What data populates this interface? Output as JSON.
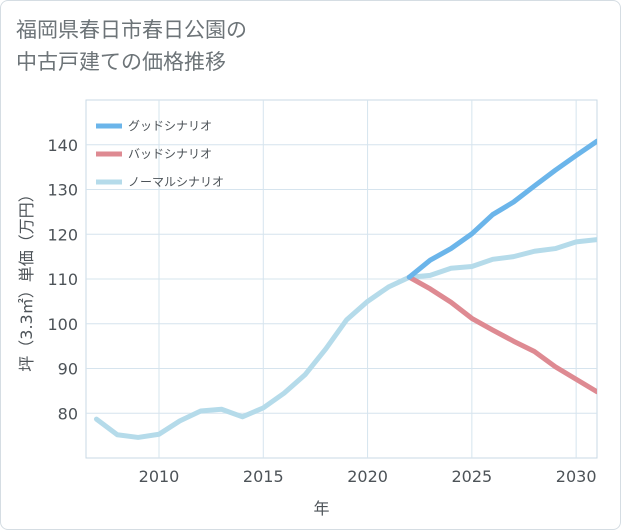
{
  "title": "福岡県春日市春日公園の\n中古戸建ての価格推移",
  "chart_data": {
    "type": "line",
    "title": "福岡県春日市春日公園の中古戸建ての価格推移",
    "xlabel": "年",
    "ylabel": "坪（3.3㎡）単価（万円）",
    "xlim": [
      2006.5,
      2031
    ],
    "ylim": [
      70,
      150
    ],
    "xticks": [
      2010,
      2015,
      2020,
      2025,
      2030
    ],
    "yticks": [
      80,
      90,
      100,
      110,
      120,
      130,
      140
    ],
    "grid": true,
    "legend_position": "top-left",
    "series": [
      {
        "name": "グッドシナリオ",
        "color": "#6bb5ea",
        "x": [
          2022,
          2023,
          2024,
          2025,
          2026,
          2027,
          2028,
          2029,
          2030,
          2031
        ],
        "y": [
          110.4,
          114.2,
          116.8,
          120.1,
          124.4,
          127.2,
          130.8,
          134.3,
          137.6,
          140.8
        ]
      },
      {
        "name": "バッドシナリオ",
        "color": "#de8a92",
        "x": [
          2022,
          2023,
          2024,
          2025,
          2026,
          2027,
          2028,
          2029,
          2030,
          2031
        ],
        "y": [
          110.4,
          107.8,
          104.8,
          101.2,
          98.6,
          96.1,
          93.8,
          90.4,
          87.6,
          84.8
        ]
      },
      {
        "name": "ノーマルシナリオ",
        "color": "#b5dbea",
        "x": [
          2007,
          2008,
          2009,
          2010,
          2011,
          2012,
          2013,
          2014,
          2015,
          2016,
          2017,
          2018,
          2019,
          2020,
          2021,
          2022,
          2023,
          2024,
          2025,
          2026,
          2027,
          2028,
          2029,
          2030,
          2031
        ],
        "y": [
          78.7,
          75.2,
          74.6,
          75.3,
          78.3,
          80.5,
          80.9,
          79.2,
          81.2,
          84.5,
          88.6,
          94.4,
          100.9,
          105.0,
          108.2,
          110.4,
          110.8,
          112.4,
          112.8,
          114.4,
          115.0,
          116.2,
          116.8,
          118.3,
          118.8
        ]
      }
    ]
  }
}
